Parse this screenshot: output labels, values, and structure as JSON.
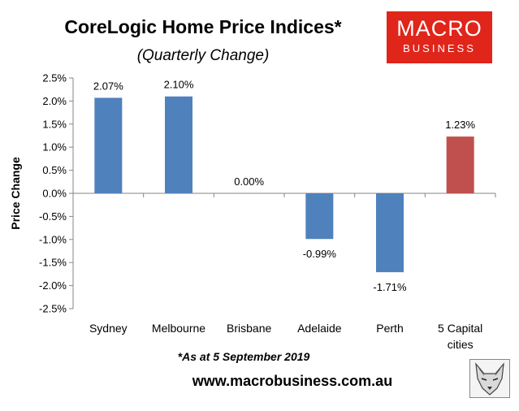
{
  "chart_data": {
    "type": "bar",
    "title": "CoreLogic Home Price Indices*",
    "subtitle": "(Quarterly Change)",
    "ylabel": "Price Change",
    "xlabel": "",
    "categories": [
      "Sydney",
      "Melbourne",
      "Brisbane",
      "Adelaide",
      "Perth",
      "5 Capital cities"
    ],
    "values": [
      2.07,
      2.1,
      0.0,
      -0.99,
      -1.71,
      1.23
    ],
    "value_labels": [
      "2.07%",
      "2.10%",
      "0.00%",
      "-0.99%",
      "-1.71%",
      "1.23%"
    ],
    "ylim": [
      -2.5,
      2.5
    ],
    "yticks": [
      2.5,
      2.0,
      1.5,
      1.0,
      0.5,
      0.0,
      -0.5,
      -1.0,
      -1.5,
      -2.0,
      -2.5
    ],
    "ytick_labels": [
      "2.5%",
      "2.0%",
      "1.5%",
      "1.0%",
      "0.5%",
      "0.0%",
      "-0.5%",
      "-1.0%",
      "-1.5%",
      "-2.0%",
      "-2.5%"
    ],
    "bar_colors": [
      "#4f81bd",
      "#4f81bd",
      "#4f81bd",
      "#4f81bd",
      "#4f81bd",
      "#c0504d"
    ],
    "grid": false,
    "legend": "none"
  },
  "logo": {
    "line1": "MACRO",
    "line2": "BUSINESS"
  },
  "footnote": "*As at 5 September 2019",
  "website": "www.macrobusiness.com.au",
  "icons": {
    "mascot": "wolf-sketch-icon"
  }
}
